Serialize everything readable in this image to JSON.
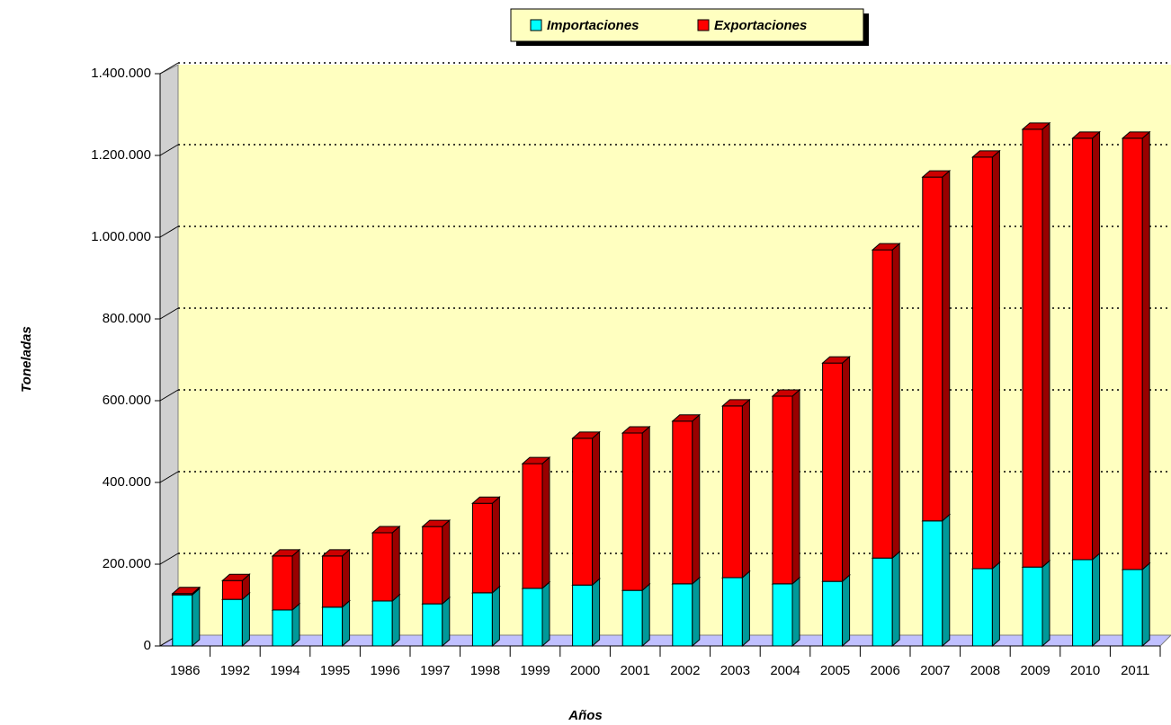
{
  "chart_data": {
    "type": "bar",
    "stacked": true,
    "x_label": "Años",
    "y_label": "Toneladas",
    "categories": [
      "1986",
      "1992",
      "1994",
      "1995",
      "1996",
      "1997",
      "1998",
      "1999",
      "2000",
      "2001",
      "2002",
      "2003",
      "2004",
      "2005",
      "2006",
      "2007",
      "2008",
      "2009",
      "2010",
      "2011"
    ],
    "series": [
      {
        "name": "Importaciones",
        "color": "#00ffff",
        "values": [
          125000,
          114000,
          88000,
          95000,
          110000,
          103000,
          130000,
          141000,
          149000,
          136000,
          152000,
          167000,
          152000,
          158000,
          215000,
          306000,
          189000,
          193000,
          211000,
          187000
        ]
      },
      {
        "name": "Exportaciones",
        "color": "#ff0000",
        "values": [
          3000,
          46000,
          132000,
          125000,
          167000,
          189000,
          219000,
          305000,
          359000,
          385000,
          398000,
          420000,
          459000,
          534000,
          754000,
          841000,
          1007000,
          1071000,
          1031000,
          1055000
        ]
      }
    ],
    "ylim": [
      0,
      1400000
    ],
    "yticks": [
      0,
      {
        "value": 200000,
        "label": "200.000"
      },
      {
        "value": 400000,
        "label": "400.000"
      },
      {
        "value": 600000,
        "label": "600.000"
      },
      {
        "value": 800000,
        "label": "800.000"
      },
      {
        "value": 1000000,
        "label": "1.000.000"
      },
      {
        "value": 1200000,
        "label": "1.200.000"
      },
      {
        "value": 1400000,
        "label": "1.400.000"
      }
    ],
    "grid": true,
    "legend": "top"
  }
}
